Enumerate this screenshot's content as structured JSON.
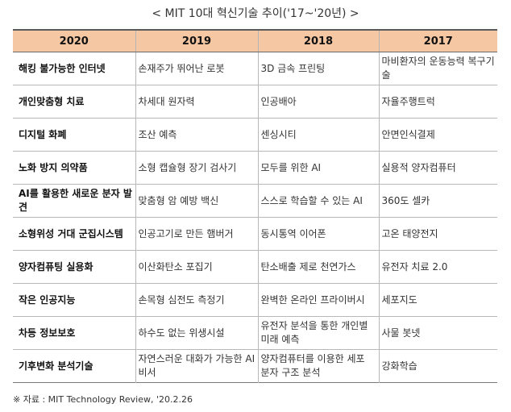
{
  "title": "< MIT 10대 혁신기술 추이('17~'20년) >",
  "headers": [
    "2020",
    "2019",
    "2018",
    "2017"
  ],
  "rows": [
    {
      "y2020": "해킹 불가능한 인터넷",
      "y2019": "손재주가 뛰어난 로봇",
      "y2018": "3D 금속 프린팅",
      "y2017": "마비환자의 운동능력 복구기술"
    },
    {
      "y2020": "개인맞춤형 치료",
      "y2019": "차세대 원자력",
      "y2018": "인공배아",
      "y2017": "자율주행트럭"
    },
    {
      "y2020": "디지털 화폐",
      "y2019": "조산 예측",
      "y2018": "센싱시티",
      "y2017": "안면인식결제"
    },
    {
      "y2020": "노화 방지 의약품",
      "y2019": "소형 캡슐형 장기 검사기",
      "y2018": "모두를 위한 AI",
      "y2017": "실용적 양자컴퓨터"
    },
    {
      "y2020": "AI를 활용한 새로운 분자 발견",
      "y2019": "맞춤형 암 예방 백신",
      "y2018": "스스로 학습할 수 있는 AI",
      "y2017": "360도 셀카"
    },
    {
      "y2020": "소형위성 거대 군집시스템",
      "y2019": "인공고기로 만든 햄버거",
      "y2018": "동시통역 이어폰",
      "y2017": "고온 태양전지"
    },
    {
      "y2020": "양자컴퓨팅 실용화",
      "y2019": "이산화탄소 포집기",
      "y2018": "탄소배출 제로 천연가스",
      "y2017": "유전자 치료 2.0"
    },
    {
      "y2020": "작은 인공지능",
      "y2019": "손목형 심전도 측정기",
      "y2018": "완벽한 온라인 프라이버시",
      "y2017": "세포지도"
    },
    {
      "y2020": "차등 정보보호",
      "y2019": "하수도 없는 위생시설",
      "y2018": "유전자 분석을 통한 개인별 미래 예측",
      "y2017": "사물 봇넷"
    },
    {
      "y2020": "기후변화 분석기술",
      "y2019": "자연스러운 대화가 가능한 AI비서",
      "y2018": "양자컴퓨터를 이용한 세포 분자 구조 분석",
      "y2017": "강화학습"
    }
  ],
  "source": "※ 자료 : MIT Technology Review, '20.2.26"
}
